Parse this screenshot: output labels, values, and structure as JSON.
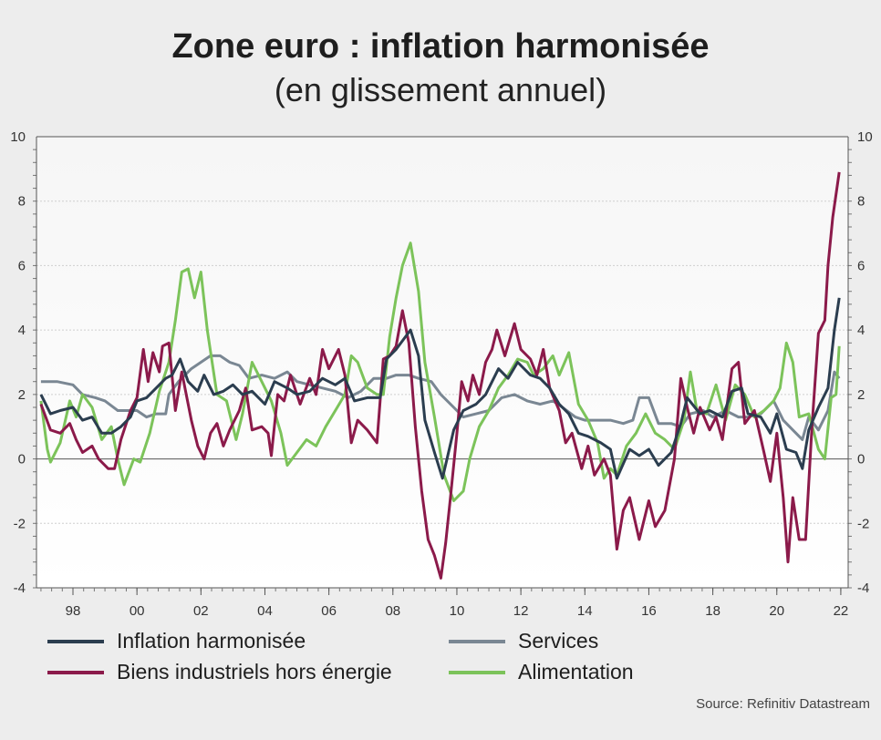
{
  "chart_data": {
    "type": "line",
    "title": "Zone euro : inflation harmonisée",
    "subtitle": "(en glissement annuel)",
    "xlabel": "",
    "ylabel": "",
    "xlim": [
      1997,
      2022
    ],
    "ylim": [
      -4,
      10
    ],
    "yticks": [
      "-4",
      "-2",
      "0",
      "2",
      "4",
      "6",
      "8",
      "10"
    ],
    "ytick_values": [
      -4,
      -2,
      0,
      2,
      4,
      6,
      8,
      10
    ],
    "xticks": [
      "98",
      "00",
      "02",
      "04",
      "06",
      "08",
      "10",
      "12",
      "14",
      "16",
      "18",
      "20",
      "22"
    ],
    "xtick_values": [
      1998,
      2000,
      2002,
      2004,
      2006,
      2008,
      2010,
      2012,
      2014,
      2016,
      2018,
      2020,
      2022
    ],
    "grid": true,
    "legend_position": "bottom",
    "series": [
      {
        "name": "Inflation harmonisée",
        "color": "#2b3d4f",
        "x": [
          1997.0,
          1997.3,
          1997.6,
          1998.0,
          1998.3,
          1998.6,
          1998.9,
          1999.2,
          1999.5,
          1999.8,
          2000.0,
          2000.3,
          2000.6,
          2000.9,
          2001.1,
          2001.35,
          2001.6,
          2001.9,
          2002.1,
          2002.4,
          2002.7,
          2003.0,
          2003.3,
          2003.6,
          2004.0,
          2004.3,
          2004.7,
          2005.0,
          2005.4,
          2005.8,
          2006.2,
          2006.5,
          2006.8,
          2007.2,
          2007.6,
          2007.8,
          2008.1,
          2008.55,
          2008.8,
          2009.0,
          2009.3,
          2009.55,
          2009.9,
          2010.2,
          2010.6,
          2010.9,
          2011.3,
          2011.6,
          2011.9,
          2012.3,
          2012.6,
          2012.9,
          2013.2,
          2013.5,
          2013.8,
          2014.1,
          2014.5,
          2014.8,
          2015.0,
          2015.4,
          2015.7,
          2016.0,
          2016.3,
          2016.7,
          2017.0,
          2017.2,
          2017.6,
          2017.9,
          2018.3,
          2018.6,
          2018.9,
          2019.1,
          2019.5,
          2019.8,
          2020.0,
          2020.3,
          2020.6,
          2020.8,
          2021.0,
          2021.3,
          2021.6,
          2021.8,
          2021.95
        ],
        "values": [
          2.0,
          1.4,
          1.5,
          1.6,
          1.2,
          1.3,
          0.8,
          0.8,
          1.0,
          1.3,
          1.8,
          1.9,
          2.2,
          2.5,
          2.6,
          3.1,
          2.4,
          2.1,
          2.6,
          2.0,
          2.1,
          2.3,
          2.0,
          2.1,
          1.7,
          2.4,
          2.2,
          2.0,
          2.1,
          2.5,
          2.3,
          2.5,
          1.8,
          1.9,
          1.9,
          3.1,
          3.4,
          4.0,
          3.2,
          1.2,
          0.2,
          -0.6,
          0.9,
          1.5,
          1.7,
          2.0,
          2.8,
          2.5,
          3.0,
          2.6,
          2.5,
          2.2,
          1.7,
          1.4,
          0.8,
          0.7,
          0.5,
          0.3,
          -0.6,
          0.3,
          0.1,
          0.3,
          -0.2,
          0.2,
          1.1,
          1.9,
          1.4,
          1.5,
          1.3,
          2.1,
          2.2,
          1.4,
          1.3,
          0.8,
          1.4,
          0.3,
          0.2,
          -0.3,
          0.9,
          1.6,
          2.2,
          4.0,
          5.0
        ]
      },
      {
        "name": "Services",
        "color": "#7a8793",
        "x": [
          1997.0,
          1997.5,
          1998.0,
          1998.3,
          1998.7,
          1999.0,
          1999.4,
          1999.7,
          2000.0,
          2000.3,
          2000.6,
          2000.9,
          2001.0,
          2001.3,
          2001.7,
          2002.0,
          2002.3,
          2002.6,
          2002.9,
          2003.2,
          2003.5,
          2003.9,
          2004.3,
          2004.7,
          2005.0,
          2005.4,
          2005.8,
          2006.2,
          2006.6,
          2007.0,
          2007.4,
          2007.8,
          2008.1,
          2008.5,
          2008.8,
          2009.2,
          2009.5,
          2009.9,
          2010.2,
          2010.6,
          2011.0,
          2011.4,
          2011.8,
          2012.2,
          2012.6,
          2013.0,
          2013.3,
          2013.7,
          2014.0,
          2014.4,
          2014.8,
          2015.2,
          2015.5,
          2015.7,
          2016.0,
          2016.3,
          2016.7,
          2017.0,
          2017.3,
          2017.7,
          2018.0,
          2018.4,
          2018.8,
          2019.1,
          2019.5,
          2019.9,
          2020.2,
          2020.5,
          2020.8,
          2021.0,
          2021.3,
          2021.6,
          2021.8,
          2021.95
        ],
        "values": [
          2.4,
          2.4,
          2.3,
          2.0,
          1.9,
          1.8,
          1.5,
          1.5,
          1.5,
          1.3,
          1.4,
          1.4,
          2.0,
          2.4,
          2.8,
          3.0,
          3.2,
          3.2,
          3.0,
          2.9,
          2.5,
          2.6,
          2.5,
          2.7,
          2.4,
          2.3,
          2.2,
          2.1,
          1.9,
          2.1,
          2.5,
          2.5,
          2.6,
          2.6,
          2.5,
          2.4,
          2.0,
          1.6,
          1.3,
          1.4,
          1.5,
          1.9,
          2.0,
          1.8,
          1.7,
          1.8,
          1.6,
          1.3,
          1.2,
          1.2,
          1.2,
          1.1,
          1.2,
          1.9,
          1.9,
          1.1,
          1.1,
          1.0,
          1.4,
          1.5,
          1.3,
          1.5,
          1.3,
          1.3,
          1.4,
          1.8,
          1.2,
          0.9,
          0.6,
          1.3,
          0.9,
          1.5,
          2.7,
          2.5
        ]
      },
      {
        "name": "Biens industriels hors énergie",
        "color": "#8b1a4a",
        "x": [
          1997.0,
          1997.3,
          1997.6,
          1997.9,
          1998.1,
          1998.3,
          1998.6,
          1998.8,
          1999.1,
          1999.3,
          1999.5,
          1999.8,
          2000.0,
          2000.2,
          2000.35,
          2000.5,
          2000.7,
          2000.8,
          2001.0,
          2001.2,
          2001.4,
          2001.7,
          2001.9,
          2002.1,
          2002.3,
          2002.5,
          2002.7,
          2002.9,
          2003.2,
          2003.4,
          2003.6,
          2003.9,
          2004.1,
          2004.2,
          2004.4,
          2004.6,
          2004.8,
          2005.1,
          2005.4,
          2005.6,
          2005.8,
          2006.0,
          2006.3,
          2006.5,
          2006.7,
          2006.9,
          2007.2,
          2007.5,
          2007.7,
          2007.9,
          2008.1,
          2008.3,
          2008.5,
          2008.7,
          2008.9,
          2009.1,
          2009.3,
          2009.5,
          2009.65,
          2009.8,
          2010.0,
          2010.15,
          2010.35,
          2010.5,
          2010.7,
          2010.9,
          2011.1,
          2011.25,
          2011.5,
          2011.8,
          2012.0,
          2012.3,
          2012.5,
          2012.7,
          2012.9,
          2013.2,
          2013.4,
          2013.6,
          2013.9,
          2014.1,
          2014.3,
          2014.6,
          2014.8,
          2015.0,
          2015.2,
          2015.4,
          2015.7,
          2016.0,
          2016.2,
          2016.5,
          2016.8,
          2017.0,
          2017.2,
          2017.4,
          2017.6,
          2017.9,
          2018.1,
          2018.3,
          2018.6,
          2018.8,
          2019.0,
          2019.3,
          2019.6,
          2019.8,
          2020.0,
          2020.2,
          2020.35,
          2020.5,
          2020.7,
          2020.9,
          2021.1,
          2021.3,
          2021.5,
          2021.6,
          2021.75,
          2021.95
        ],
        "values": [
          1.7,
          0.9,
          0.8,
          1.1,
          0.6,
          0.2,
          0.4,
          0.0,
          -0.3,
          -0.3,
          0.6,
          1.5,
          1.9,
          3.4,
          2.4,
          3.3,
          2.7,
          3.5,
          3.6,
          1.5,
          2.7,
          1.2,
          0.4,
          0.0,
          0.8,
          1.1,
          0.4,
          0.9,
          1.5,
          2.2,
          0.9,
          1.0,
          0.8,
          0.1,
          2.0,
          1.8,
          2.6,
          1.7,
          2.5,
          2.0,
          3.4,
          2.8,
          3.4,
          2.6,
          0.5,
          1.2,
          0.9,
          0.5,
          3.1,
          3.2,
          3.5,
          4.6,
          3.6,
          1.0,
          -1.0,
          -2.5,
          -3.0,
          -3.7,
          -2.6,
          -1.2,
          0.8,
          2.4,
          1.8,
          2.6,
          2.0,
          3.0,
          3.4,
          4.0,
          3.2,
          4.2,
          3.4,
          3.1,
          2.6,
          3.4,
          2.2,
          1.5,
          0.5,
          0.8,
          -0.3,
          0.4,
          -0.5,
          0.0,
          -0.5,
          -2.8,
          -1.6,
          -1.2,
          -2.5,
          -1.3,
          -2.1,
          -1.6,
          0.0,
          2.5,
          1.6,
          0.8,
          1.6,
          0.9,
          1.3,
          0.6,
          2.8,
          3.0,
          1.1,
          1.5,
          0.2,
          -0.7,
          0.8,
          -1.2,
          -3.2,
          -1.2,
          -2.5,
          -2.5,
          1.0,
          3.9,
          4.3,
          6.0,
          7.5,
          8.9
        ]
      },
      {
        "name": "Alimentation",
        "color": "#7cc35a",
        "x": [
          1997.0,
          1997.2,
          1997.3,
          1997.6,
          1997.9,
          1998.1,
          1998.3,
          1998.6,
          1998.9,
          1999.2,
          1999.4,
          1999.6,
          1999.9,
          2000.1,
          2000.4,
          2000.7,
          2001.0,
          2001.2,
          2001.4,
          2001.6,
          2001.8,
          2002.0,
          2002.2,
          2002.5,
          2002.8,
          2003.1,
          2003.3,
          2003.6,
          2003.9,
          2004.2,
          2004.5,
          2004.7,
          2005.0,
          2005.3,
          2005.6,
          2005.9,
          2006.2,
          2006.5,
          2006.7,
          2006.9,
          2007.2,
          2007.5,
          2007.7,
          2007.9,
          2008.1,
          2008.3,
          2008.55,
          2008.8,
          2009.0,
          2009.3,
          2009.6,
          2009.9,
          2010.2,
          2010.4,
          2010.7,
          2011.0,
          2011.3,
          2011.6,
          2011.9,
          2012.2,
          2012.4,
          2012.7,
          2013.0,
          2013.2,
          2013.5,
          2013.8,
          2014.1,
          2014.4,
          2014.6,
          2014.8,
          2015.0,
          2015.3,
          2015.6,
          2015.9,
          2016.2,
          2016.5,
          2016.8,
          2017.1,
          2017.3,
          2017.5,
          2017.8,
          2018.1,
          2018.4,
          2018.7,
          2019.0,
          2019.3,
          2019.6,
          2019.9,
          2020.1,
          2020.3,
          2020.5,
          2020.7,
          2021.0,
          2021.3,
          2021.5,
          2021.7,
          2021.85,
          2021.95
        ],
        "values": [
          1.8,
          0.3,
          -0.1,
          0.5,
          1.8,
          1.3,
          2.0,
          1.6,
          0.6,
          1.0,
          0.0,
          -0.8,
          0.0,
          -0.1,
          0.8,
          2.1,
          3.0,
          4.3,
          5.8,
          5.9,
          5.0,
          5.8,
          4.0,
          2.0,
          1.8,
          0.6,
          1.4,
          3.0,
          2.4,
          1.8,
          0.8,
          -0.2,
          0.2,
          0.6,
          0.4,
          1.0,
          1.5,
          2.0,
          3.2,
          3.0,
          2.2,
          2.0,
          2.0,
          3.8,
          5.0,
          6.0,
          6.7,
          5.2,
          3.0,
          1.3,
          -0.5,
          -1.3,
          -1.0,
          0.0,
          1.0,
          1.5,
          2.2,
          2.6,
          3.1,
          3.0,
          2.6,
          2.8,
          3.2,
          2.6,
          3.3,
          1.7,
          1.2,
          0.5,
          -0.6,
          -0.3,
          -0.5,
          0.4,
          0.8,
          1.4,
          0.8,
          0.6,
          0.3,
          1.2,
          2.7,
          1.5,
          1.4,
          2.3,
          1.2,
          2.3,
          2.0,
          1.3,
          1.5,
          1.8,
          2.2,
          3.6,
          3.0,
          1.3,
          1.4,
          0.3,
          0.0,
          1.9,
          2.0,
          3.5
        ]
      }
    ],
    "source": "Source: Refinitiv Datastream"
  }
}
